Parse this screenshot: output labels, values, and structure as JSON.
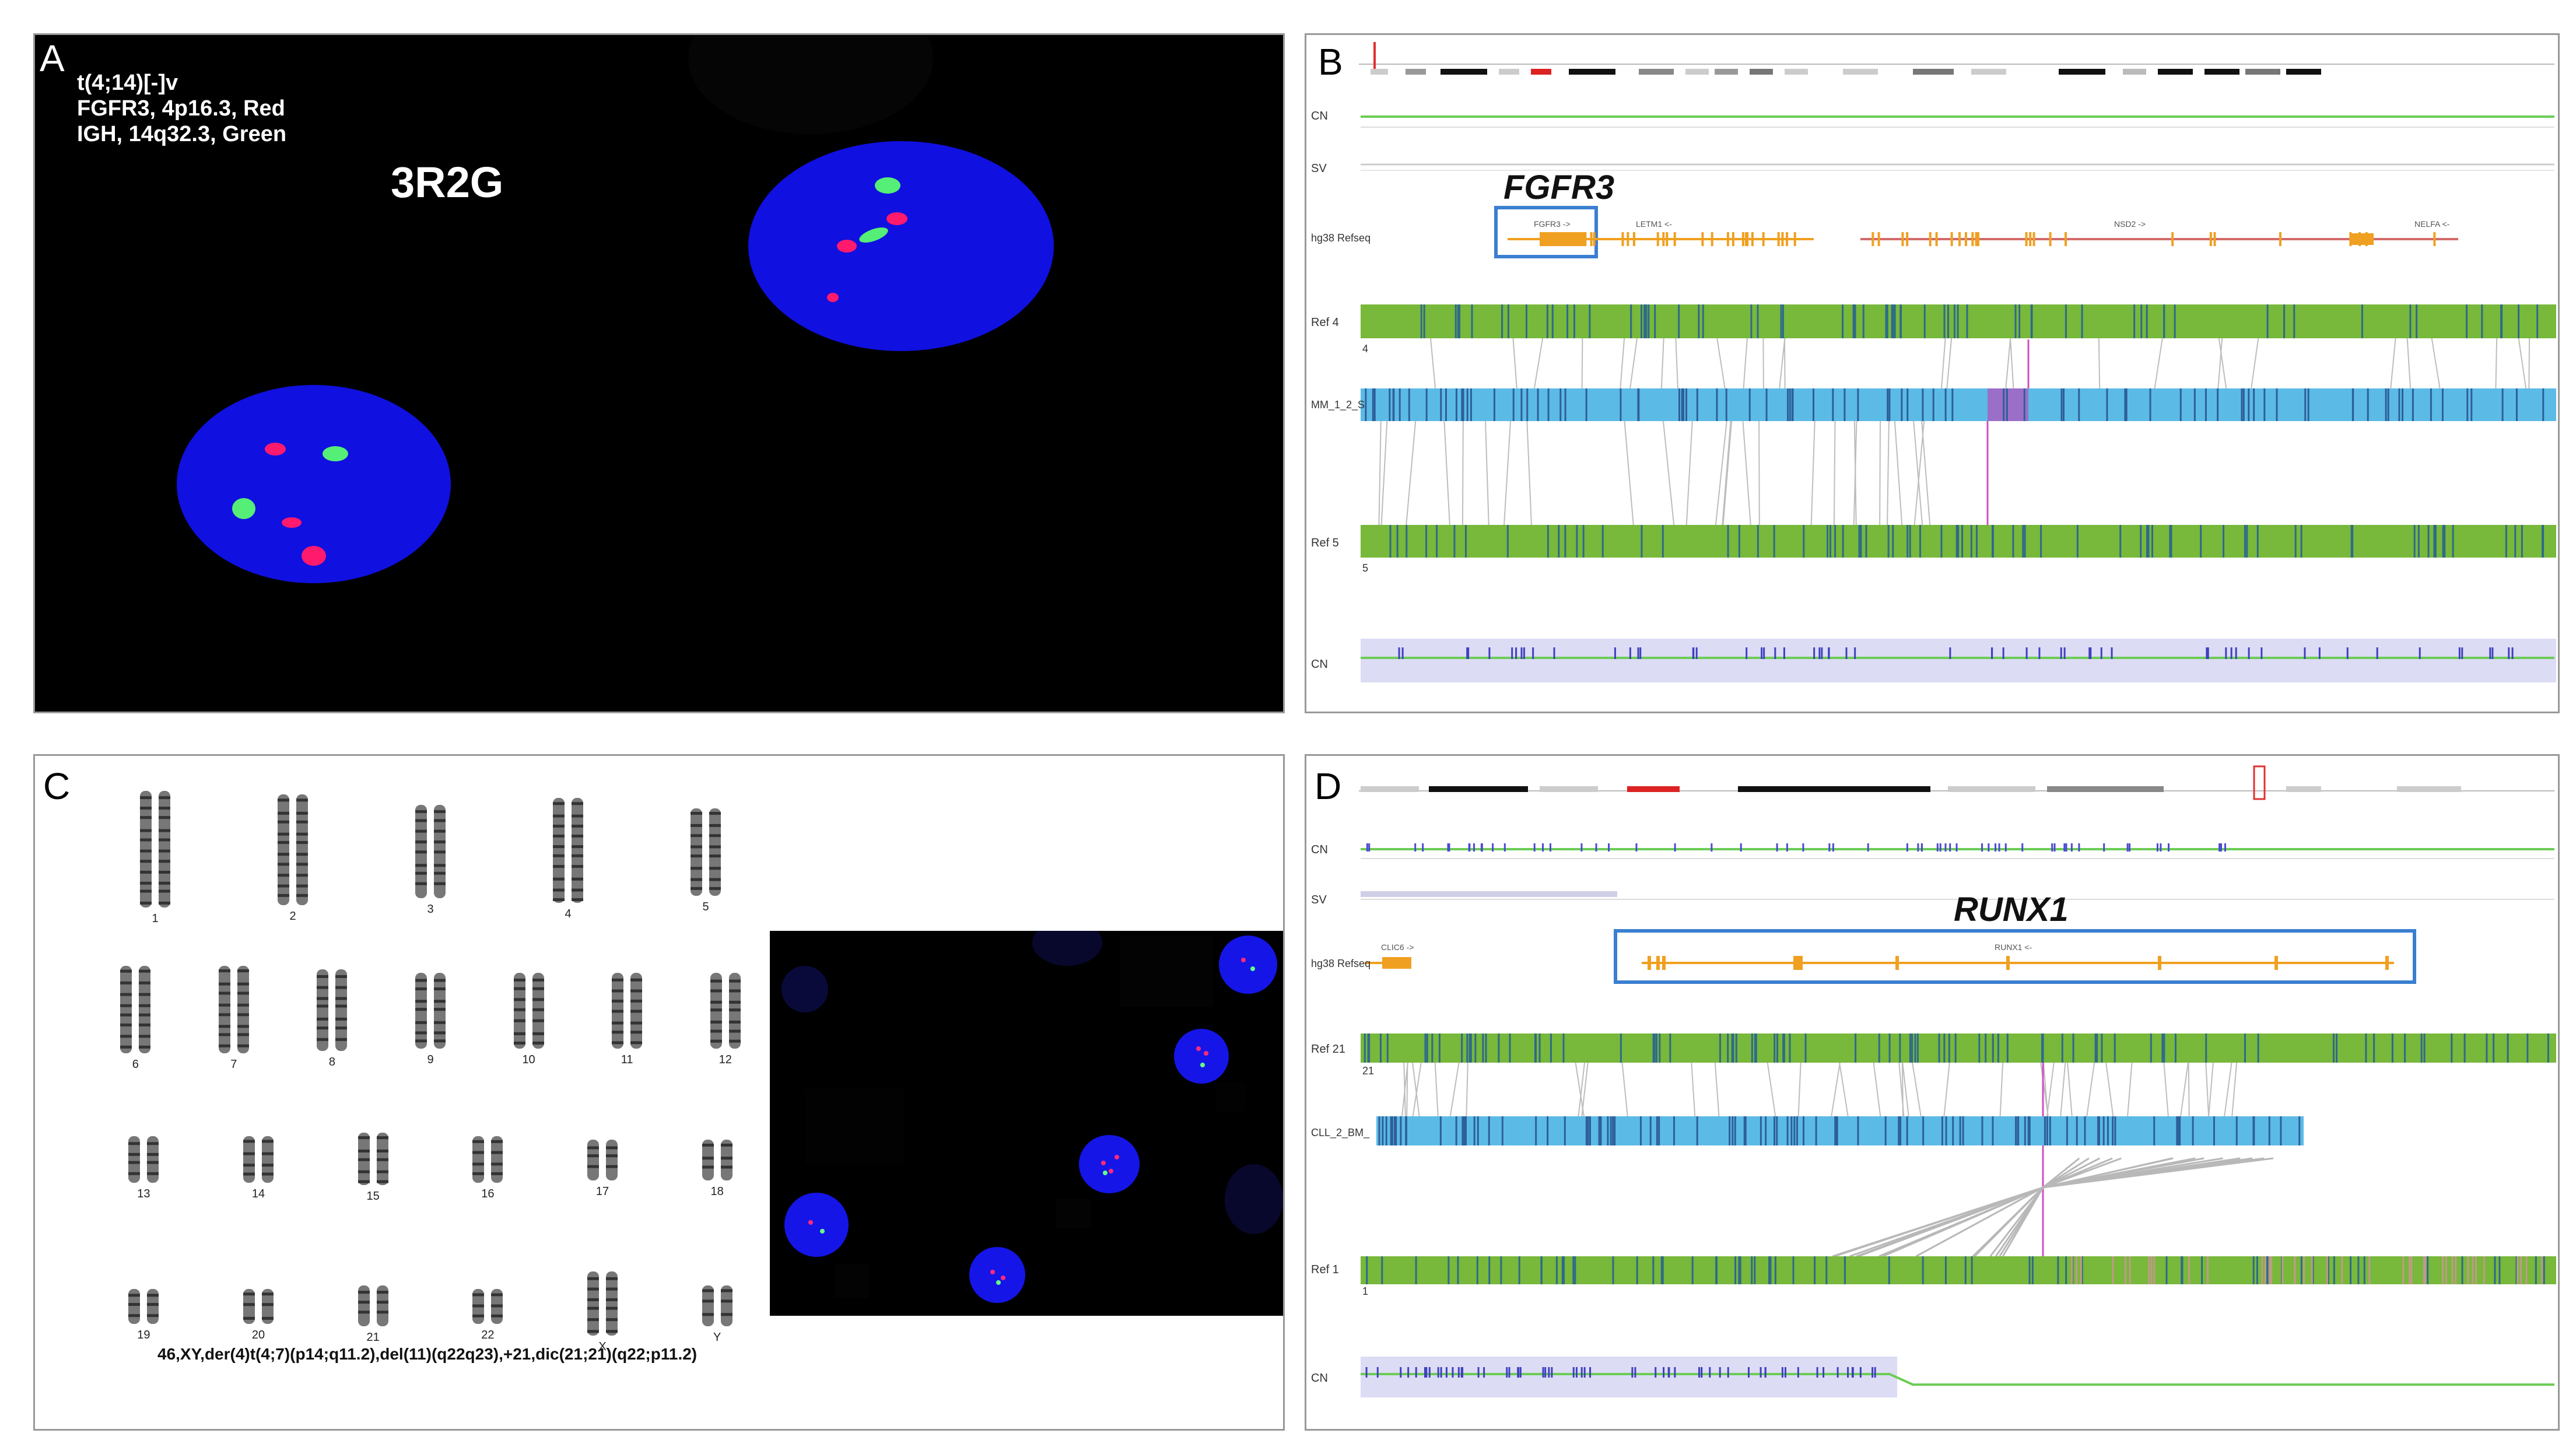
{
  "panel_a": {
    "label": "A",
    "line1": "t(4;14)[-]v",
    "line2": "FGFR3, 4p16.3, Red",
    "line3": "IGH, 14q32.3, Green",
    "pattern": "3R2G"
  },
  "panel_b": {
    "label": "B",
    "gene": "FGFR3",
    "track_cn": "CN",
    "track_sv": "SV",
    "track_hg38": "hg38 Refseq",
    "track_ref4": "Ref 4",
    "ref4_num": "4",
    "track_sample": "MM_1_2_S",
    "track_ref5": "Ref 5",
    "ref5_num": "5",
    "track_cn2": "CN",
    "genes": [
      "FGFR3 ->",
      "LETM1 <-",
      "NSD2 ->",
      "NELFA <-"
    ]
  },
  "panel_c": {
    "label": "C",
    "chromosomes": [
      "1",
      "2",
      "3",
      "4",
      "5",
      "6",
      "7",
      "8",
      "9",
      "10",
      "11",
      "12",
      "13",
      "14",
      "15",
      "16",
      "17",
      "18",
      "19",
      "20",
      "21",
      "22",
      "X",
      "Y"
    ],
    "karyotype": "46,XY,der(4)t(4;7)(p14;q11.2),del(11)(q22q23),+21,dic(21;21)(q22;p11.2)"
  },
  "panel_d": {
    "label": "D",
    "gene": "RUNX1",
    "track_cn": "CN",
    "track_sv": "SV",
    "track_hg38": "hg38 Refseq",
    "track_ref21": "Ref 21",
    "ref21_num": "21",
    "track_sample": "CLL_2_BM_",
    "track_ref1": "Ref 1",
    "ref1_num": "1",
    "track_cn2": "CN",
    "genes": [
      "CLIC6 ->",
      "RUNX1 <-"
    ]
  },
  "colors": {
    "nucleus": "#1010e0",
    "red_signal": "#ff1a6e",
    "green_signal": "#55ee77",
    "track_green": "#78b83a",
    "track_blue": "#5bbbe6",
    "highlight_box": "#3a7fd0",
    "gene_orange": "#f0a020"
  }
}
